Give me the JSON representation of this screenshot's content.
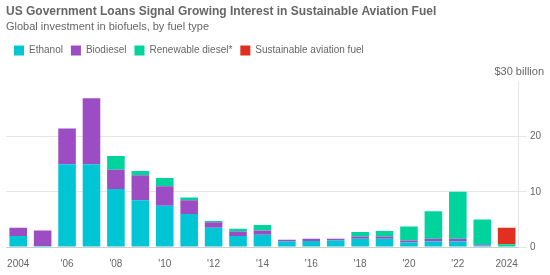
{
  "chart_data": {
    "type": "bar",
    "title": "US Government Loans Signal Growing Interest in Sustainable Aviation Fuel",
    "subtitle": "Global investment in biofuels, by fuel type",
    "annotations": [
      "$30 billion"
    ],
    "categories": [
      "2004",
      null,
      "'06",
      null,
      "'08",
      null,
      "'10",
      null,
      "'12",
      null,
      "'14",
      null,
      "'16",
      null,
      "'18",
      null,
      "'20",
      null,
      "'22",
      null,
      "2024"
    ],
    "series": [
      {
        "name": "Ethanol",
        "color": "#00c5d4",
        "values": [
          2.0,
          0.2,
          15.0,
          15.0,
          10.5,
          8.5,
          7.5,
          6.0,
          3.5,
          2.0,
          2.2,
          1.0,
          1.1,
          1.2,
          1.5,
          1.5,
          0.8,
          1.0,
          1.0,
          0.3,
          0.0
        ]
      },
      {
        "name": "Biodiesel",
        "color": "#9c4dc4",
        "values": [
          1.5,
          2.8,
          6.5,
          12.0,
          3.5,
          4.5,
          3.5,
          2.5,
          1.0,
          0.8,
          0.8,
          0.3,
          0.4,
          0.3,
          0.4,
          0.4,
          0.4,
          0.5,
          0.5,
          0.2,
          0.0
        ]
      },
      {
        "name": "Renewable diesel*",
        "color": "#00d49c",
        "values": [
          0.0,
          0.0,
          0.0,
          0.0,
          2.5,
          0.8,
          1.5,
          0.5,
          0.2,
          0.5,
          1.0,
          0.0,
          0.0,
          0.0,
          0.8,
          1.0,
          2.5,
          5.0,
          8.5,
          4.5,
          0.5
        ]
      },
      {
        "name": "Sustainable aviation fuel",
        "color": "#e03020",
        "values": [
          0.0,
          0.0,
          0.0,
          0.0,
          0.0,
          0.0,
          0.0,
          0.0,
          0.0,
          0.0,
          0.0,
          0.0,
          0.0,
          0.0,
          0.0,
          0.0,
          0.0,
          0.0,
          0.0,
          0.0,
          3.0
        ]
      }
    ],
    "stacked": true,
    "ylim": [
      0,
      30
    ],
    "yticks": [
      0,
      10,
      20
    ],
    "grid": true,
    "legend": "top"
  }
}
